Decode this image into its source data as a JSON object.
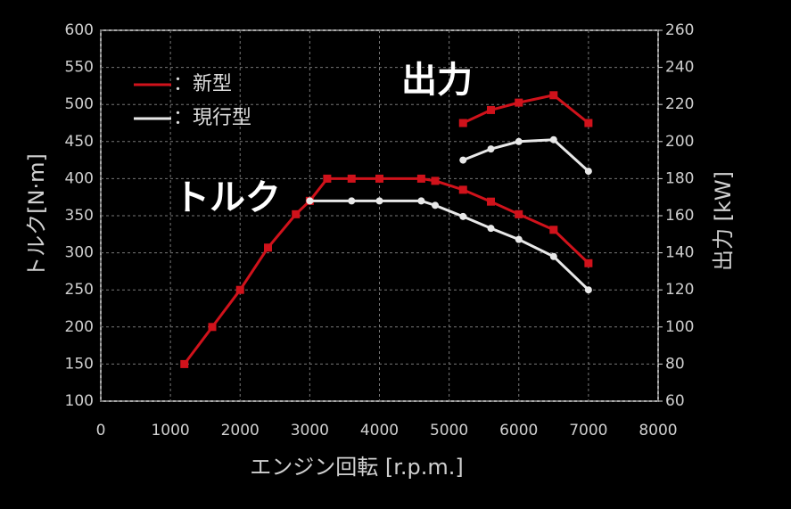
{
  "chart_data": {
    "type": "line",
    "xlabel": "エンジン回転 [r.p.m.]",
    "ylabel": "トルク[N·m]",
    "y2label": "出力 [kW]",
    "annotations": [
      "出力",
      "トルク"
    ],
    "xlim": [
      0,
      8000
    ],
    "xticks": [
      0,
      1000,
      2000,
      3000,
      4000,
      5000,
      6000,
      7000,
      8000
    ],
    "ylim": [
      100,
      600
    ],
    "yticks": [
      100,
      150,
      200,
      250,
      300,
      350,
      400,
      450,
      500,
      550,
      600
    ],
    "y2lim": [
      60,
      260
    ],
    "y2ticks": [
      60,
      80,
      100,
      120,
      140,
      160,
      180,
      200,
      220,
      240,
      260
    ],
    "grid": true,
    "series": [
      {
        "name": "：新型",
        "color": "#d0121b",
        "marker": "square",
        "axis": "y",
        "x": [
          1200,
          1600,
          2000,
          2400,
          2800,
          3000,
          3250,
          3600,
          4000,
          4600,
          4800,
          5200,
          5600,
          6000,
          6500,
          7000
        ],
        "values": [
          150,
          200,
          250,
          307,
          352,
          370,
          400,
          400,
          400,
          400,
          397,
          385,
          369,
          352,
          331,
          286
        ]
      },
      {
        "name": "：現行型",
        "color": "#e8e8e8",
        "marker": "circle",
        "axis": "y",
        "x": [
          3000,
          3600,
          4000,
          4600,
          4800,
          5200,
          5600,
          6000,
          6500,
          7000
        ],
        "values": [
          370,
          370,
          370,
          370,
          364,
          349,
          333,
          318,
          295,
          250
        ]
      },
      {
        "name": "：新型",
        "color": "#d0121b",
        "marker": "square",
        "axis": "y2",
        "x": [
          5200,
          5600,
          6000,
          6500,
          7000
        ],
        "values": [
          210,
          217,
          221,
          225,
          210
        ]
      },
      {
        "name": "：現行型",
        "color": "#e8e8e8",
        "marker": "circle",
        "axis": "y2",
        "x": [
          5200,
          5600,
          6000,
          6500,
          7000
        ],
        "values": [
          190,
          196,
          200,
          201,
          184
        ]
      }
    ]
  }
}
